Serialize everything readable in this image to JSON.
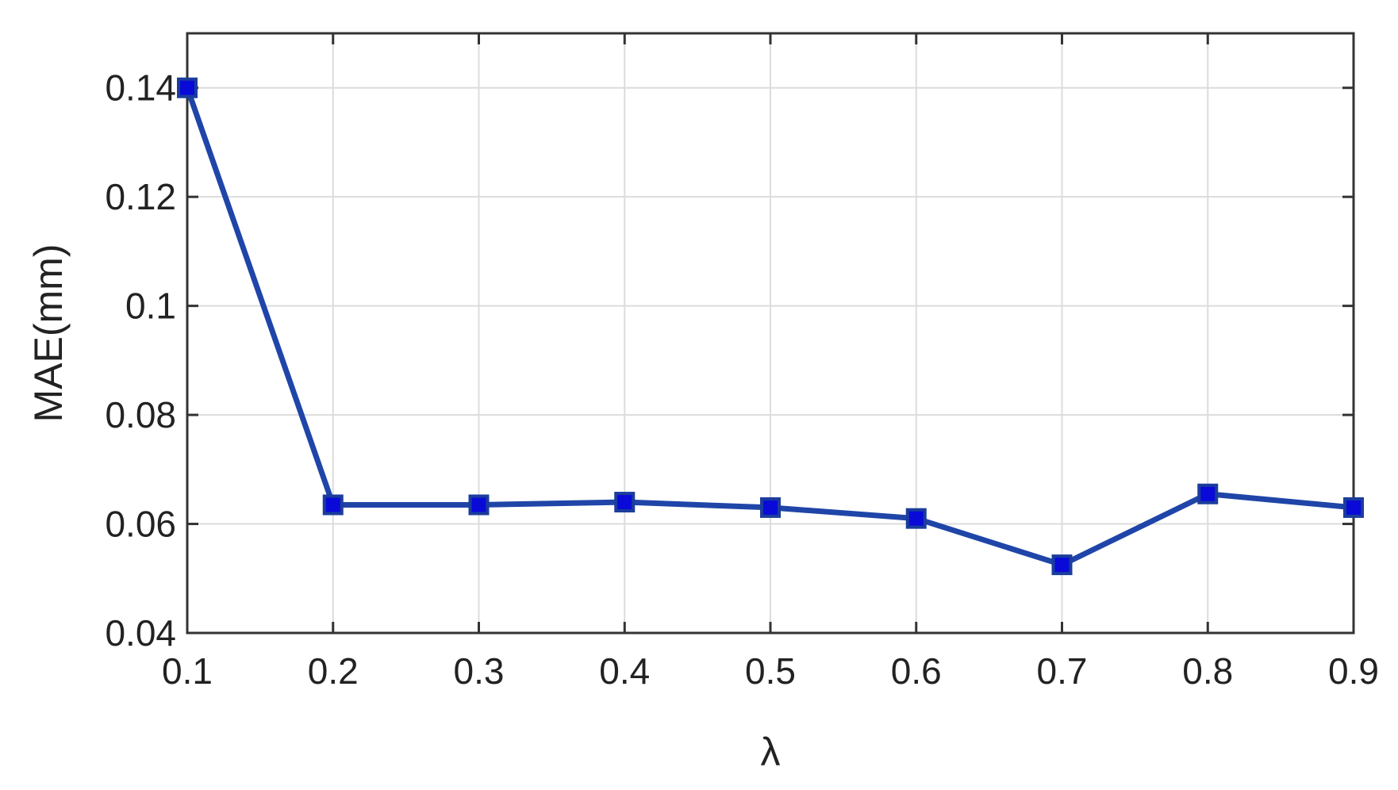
{
  "chart_data": {
    "type": "line",
    "xlabel": "λ",
    "ylabel": "MAE(mm)",
    "x": [
      0.1,
      0.2,
      0.3,
      0.4,
      0.5,
      0.6,
      0.7,
      0.8,
      0.9
    ],
    "series": [
      {
        "values": [
          0.14,
          0.0635,
          0.0635,
          0.064,
          0.063,
          0.061,
          0.0525,
          0.0655,
          0.063
        ]
      }
    ],
    "xlim": [
      0.1,
      0.9
    ],
    "ylim": [
      0.04,
      0.15
    ],
    "xticks": [
      "0.1",
      "0.2",
      "0.3",
      "0.4",
      "0.5",
      "0.6",
      "0.7",
      "0.8",
      "0.9"
    ],
    "yticks": [
      "0.04",
      "0.06",
      "0.08",
      "0.1",
      "0.12",
      "0.14"
    ],
    "ytick_values": [
      0.04,
      0.06,
      0.08,
      0.1,
      0.12,
      0.14
    ],
    "grid": true,
    "colors": {
      "line": "#1f45a8",
      "marker_fill": "#0a0ad8"
    }
  }
}
